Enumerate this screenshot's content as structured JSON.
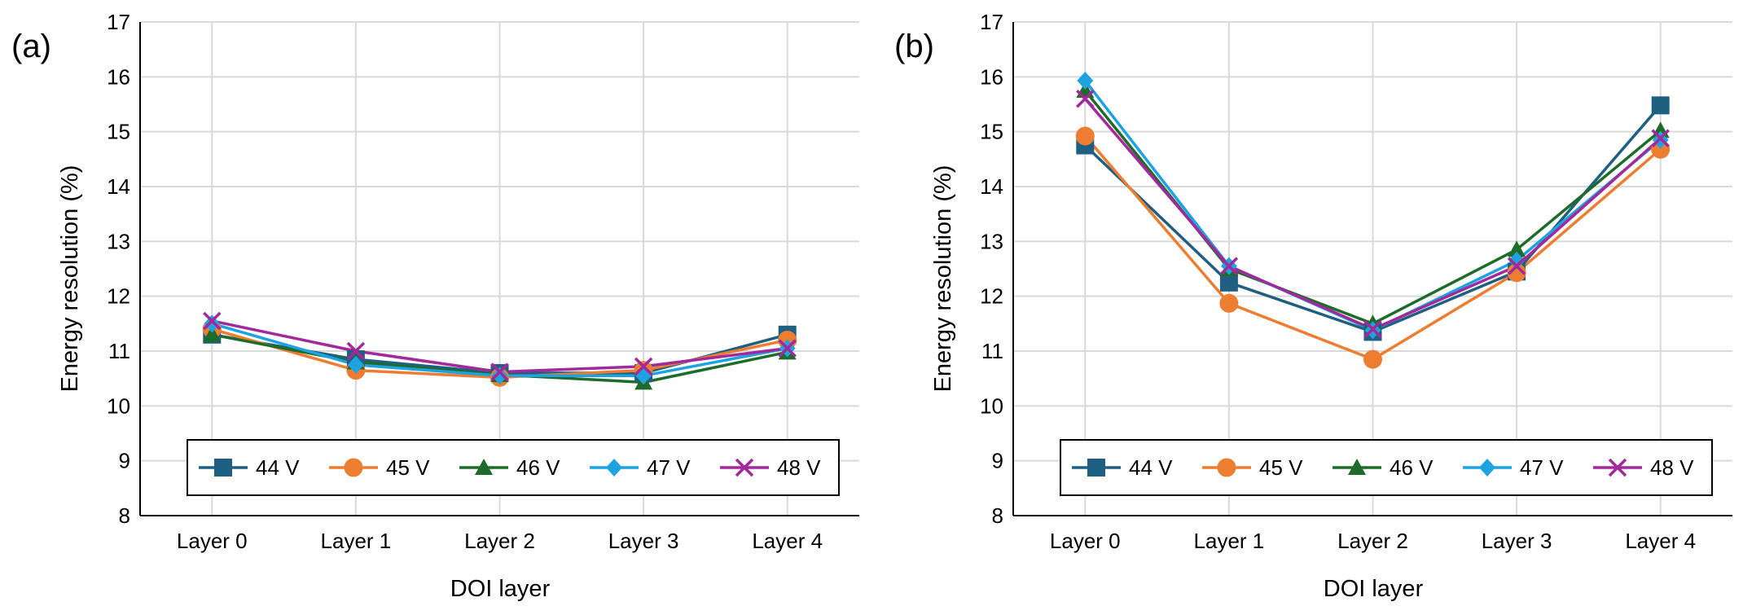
{
  "colors": {
    "44 V": "#1f5f82",
    "45 V": "#ed7d31",
    "46 V": "#1e6b2a",
    "47 V": "#1fa3e0",
    "48 V": "#a2289c"
  },
  "chart_data": [
    {
      "type": "line",
      "panel_label": "(a)",
      "xlabel": "DOI layer",
      "ylabel": "Energy resolution (%)",
      "categories": [
        "Layer 0",
        "Layer 1",
        "Layer 2",
        "Layer 3",
        "Layer 4"
      ],
      "ylim": [
        8,
        17
      ],
      "yticks": [
        "8",
        "9",
        "10",
        "11",
        "12",
        "13",
        "14",
        "15",
        "16",
        "17"
      ],
      "grid": true,
      "legend_placement": "bottom-inside",
      "series": [
        {
          "name": "44 V",
          "marker": "square",
          "values": [
            11.3,
            10.85,
            10.6,
            10.6,
            11.3
          ]
        },
        {
          "name": "45 V",
          "marker": "circle",
          "values": [
            11.4,
            10.65,
            10.52,
            10.65,
            11.2
          ]
        },
        {
          "name": "46 V",
          "marker": "triangle",
          "values": [
            11.3,
            10.8,
            10.57,
            10.43,
            10.98
          ]
        },
        {
          "name": "47 V",
          "marker": "diamond",
          "values": [
            11.5,
            10.75,
            10.55,
            10.55,
            11.05
          ]
        },
        {
          "name": "48 V",
          "marker": "x",
          "values": [
            11.55,
            11.0,
            10.62,
            10.72,
            11.05
          ]
        }
      ]
    },
    {
      "type": "line",
      "panel_label": "(b)",
      "xlabel": "DOI layer",
      "ylabel": "Energy resolution (%)",
      "categories": [
        "Layer 0",
        "Layer 1",
        "Layer 2",
        "Layer 3",
        "Layer 4"
      ],
      "ylim": [
        8,
        17
      ],
      "yticks": [
        "8",
        "9",
        "10",
        "11",
        "12",
        "13",
        "14",
        "15",
        "16",
        "17"
      ],
      "grid": true,
      "legend_placement": "bottom-inside",
      "series": [
        {
          "name": "44 V",
          "marker": "square",
          "values": [
            14.75,
            12.25,
            11.35,
            12.45,
            15.48
          ]
        },
        {
          "name": "45 V",
          "marker": "circle",
          "values": [
            14.92,
            11.87,
            10.85,
            12.43,
            14.68
          ]
        },
        {
          "name": "46 V",
          "marker": "triangle",
          "values": [
            15.75,
            12.5,
            11.5,
            12.85,
            15.02
          ]
        },
        {
          "name": "47 V",
          "marker": "diamond",
          "values": [
            15.93,
            12.55,
            11.38,
            12.65,
            14.85
          ]
        },
        {
          "name": "48 V",
          "marker": "x",
          "values": [
            15.6,
            12.55,
            11.4,
            12.55,
            14.88
          ]
        }
      ]
    }
  ]
}
